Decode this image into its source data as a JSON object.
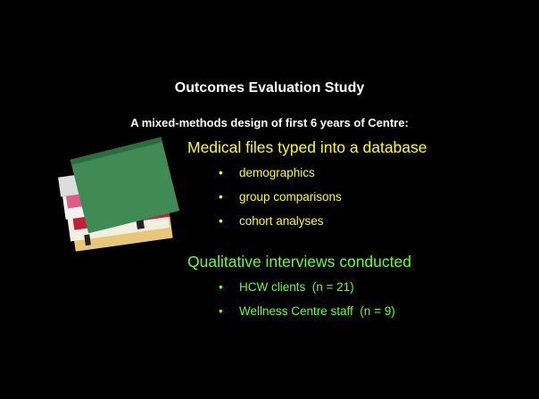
{
  "title": "Outcomes Evaluation Study",
  "subtitle": "A mixed-methods design of first 6 years of Centre:",
  "sections": [
    {
      "heading": "Medical files typed into a database",
      "color": "#ffff00",
      "items": [
        "demographics",
        "group comparisons",
        "cohort analyses"
      ]
    },
    {
      "heading": "Qualitative interviews conducted",
      "color": "#66ff33",
      "items": [
        "HCW clients  (n = 21)",
        "Wellness Centre staff  (n = 9)"
      ]
    }
  ]
}
